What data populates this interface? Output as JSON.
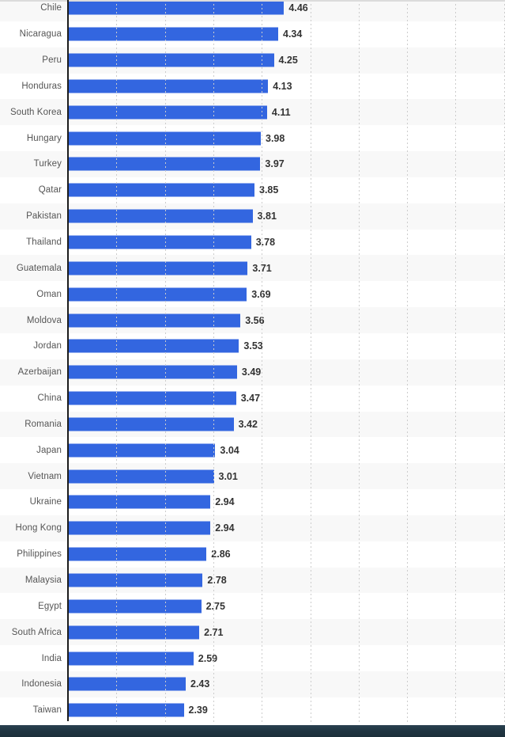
{
  "chart_data": {
    "type": "bar",
    "orientation": "horizontal",
    "title": "",
    "xlabel": "",
    "ylabel": "",
    "categories": [
      "Chile",
      "Nicaragua",
      "Peru",
      "Honduras",
      "South Korea",
      "Hungary",
      "Turkey",
      "Qatar",
      "Pakistan",
      "Thailand",
      "Guatemala",
      "Oman",
      "Moldova",
      "Jordan",
      "Azerbaijan",
      "China",
      "Romania",
      "Japan",
      "Vietnam",
      "Ukraine",
      "Hong Kong",
      "Philippines",
      "Malaysia",
      "Egypt",
      "South Africa",
      "India",
      "Indonesia",
      "Taiwan"
    ],
    "values": [
      4.46,
      4.34,
      4.25,
      4.13,
      4.11,
      3.98,
      3.97,
      3.85,
      3.81,
      3.78,
      3.71,
      3.69,
      3.56,
      3.53,
      3.49,
      3.47,
      3.42,
      3.04,
      3.01,
      2.94,
      2.94,
      2.86,
      2.78,
      2.75,
      2.71,
      2.59,
      2.43,
      2.39
    ],
    "xlim": [
      0,
      9
    ],
    "gridline_interval": 1,
    "grid": true,
    "legend": "none",
    "colors": {
      "bar": "#3366e0",
      "stripe_even": "#f8f8f8",
      "stripe_odd": "#ffffff",
      "gridline": "#cccccc",
      "axis": "#1c1c1c",
      "category_label": "#555555",
      "value_label": "#333333",
      "footer_bar": "#203643"
    }
  }
}
